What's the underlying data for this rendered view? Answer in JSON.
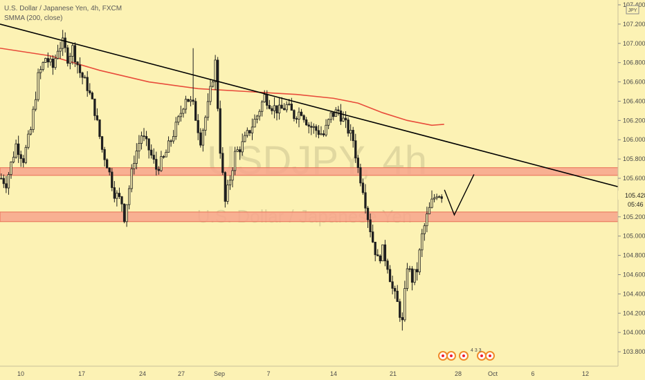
{
  "legend": {
    "title": "U.S. Dollar / Japanese Yen, 4h, FXCM",
    "indicator": "SMMA (200, close)"
  },
  "watermark": {
    "symbol": "USDJPY, 4h",
    "description": "U.S. Dollar / Japanese Yen"
  },
  "currency_badge": "JPY",
  "price_axis": {
    "ticks": [
      "107.400",
      "107.200",
      "107.000",
      "106.800",
      "106.600",
      "106.400",
      "106.200",
      "106.000",
      "105.800",
      "105.600",
      "105.200",
      "105.000",
      "104.800",
      "104.600",
      "104.400",
      "104.200",
      "104.000",
      "103.800"
    ],
    "last_price": "105.428",
    "countdown": "05:46"
  },
  "time_axis": {
    "ticks": [
      "10",
      "17",
      "24",
      "27",
      "Sep",
      "7",
      "14",
      "21",
      "28",
      "Oct",
      "6",
      "12"
    ]
  },
  "events": {
    "label": "4 3 3"
  },
  "colors": {
    "background": "#fcf2b4",
    "sma": "#e84b3a",
    "zone_fill": "#f7a58c",
    "zone_border": "#e86e55",
    "candle": "#1e1e1e",
    "trendline": "#000000"
  },
  "chart_data": {
    "type": "candlestick",
    "title": "U.S. Dollar / Japanese Yen, 4h, FXCM",
    "ylim": [
      103.65,
      107.45
    ],
    "x_ticks": [
      "10",
      "17",
      "24",
      "27",
      "Sep",
      "7",
      "14",
      "21",
      "28",
      "Oct",
      "6",
      "12"
    ],
    "last_price": 105.428,
    "anchors": [
      [
        0,
        105.6
      ],
      [
        2,
        105.55
      ],
      [
        6,
        105.95
      ],
      [
        9,
        105.8
      ],
      [
        12,
        106.1
      ],
      [
        15,
        106.65
      ],
      [
        18,
        106.85
      ],
      [
        21,
        106.75
      ],
      [
        23,
        106.95
      ],
      [
        25,
        107.0
      ],
      [
        27,
        106.85
      ],
      [
        29,
        106.95
      ],
      [
        32,
        106.7
      ],
      [
        35,
        106.55
      ],
      [
        38,
        106.3
      ],
      [
        41,
        105.9
      ],
      [
        43,
        105.75
      ],
      [
        46,
        105.45
      ],
      [
        49,
        105.35
      ],
      [
        50,
        105.2
      ],
      [
        52,
        105.5
      ],
      [
        54,
        105.8
      ],
      [
        57,
        106.05
      ],
      [
        60,
        105.9
      ],
      [
        63,
        105.7
      ],
      [
        66,
        105.8
      ],
      [
        69,
        106.0
      ],
      [
        72,
        106.2
      ],
      [
        75,
        106.45
      ],
      [
        78,
        106.35
      ],
      [
        81,
        106.0
      ],
      [
        84,
        106.35
      ],
      [
        87,
        106.8
      ],
      [
        89,
        105.9
      ],
      [
        91,
        105.35
      ],
      [
        93,
        105.6
      ],
      [
        95,
        105.85
      ],
      [
        98,
        105.95
      ],
      [
        101,
        106.1
      ],
      [
        104,
        106.25
      ],
      [
        107,
        106.45
      ],
      [
        110,
        106.35
      ],
      [
        113,
        106.3
      ],
      [
        116,
        106.35
      ],
      [
        119,
        106.25
      ],
      [
        122,
        106.3
      ],
      [
        125,
        106.15
      ],
      [
        128,
        106.1
      ],
      [
        131,
        106.05
      ],
      [
        134,
        106.25
      ],
      [
        137,
        106.3
      ],
      [
        140,
        106.15
      ],
      [
        143,
        106.0
      ],
      [
        145,
        105.7
      ],
      [
        147,
        105.5
      ],
      [
        149,
        105.2
      ],
      [
        151,
        104.95
      ],
      [
        153,
        104.75
      ],
      [
        155,
        104.85
      ],
      [
        157,
        104.7
      ],
      [
        159,
        104.45
      ],
      [
        161,
        104.3
      ],
      [
        163,
        104.1
      ],
      [
        165,
        104.7
      ],
      [
        167,
        104.55
      ],
      [
        169,
        104.65
      ],
      [
        171,
        105.0
      ],
      [
        173,
        105.2
      ],
      [
        175,
        105.35
      ],
      [
        177,
        105.45
      ],
      [
        179,
        105.43
      ]
    ],
    "candle_range": {
      "count": 180,
      "high_spike_index": 78,
      "high_spike_value": 106.95,
      "low_spike_index": 163,
      "low_spike_value": 104.02
    },
    "sma_200": [
      [
        0,
        106.95
      ],
      [
        20,
        106.87
      ],
      [
        40,
        106.72
      ],
      [
        60,
        106.6
      ],
      [
        80,
        106.53
      ],
      [
        100,
        106.5
      ],
      [
        120,
        106.47
      ],
      [
        135,
        106.43
      ],
      [
        145,
        106.38
      ],
      [
        155,
        106.28
      ],
      [
        165,
        106.2
      ],
      [
        175,
        106.15
      ],
      [
        180,
        106.16
      ]
    ],
    "trendline": [
      [
        0,
        107.2
      ],
      [
        253,
        105.5
      ]
    ],
    "zones": [
      {
        "from": 105.63,
        "to": 105.71
      },
      {
        "from": 105.15,
        "to": 105.25
      }
    ],
    "projection": [
      [
        0,
        105.48
      ],
      [
        4,
        105.22
      ],
      [
        12,
        105.64
      ]
    ]
  }
}
